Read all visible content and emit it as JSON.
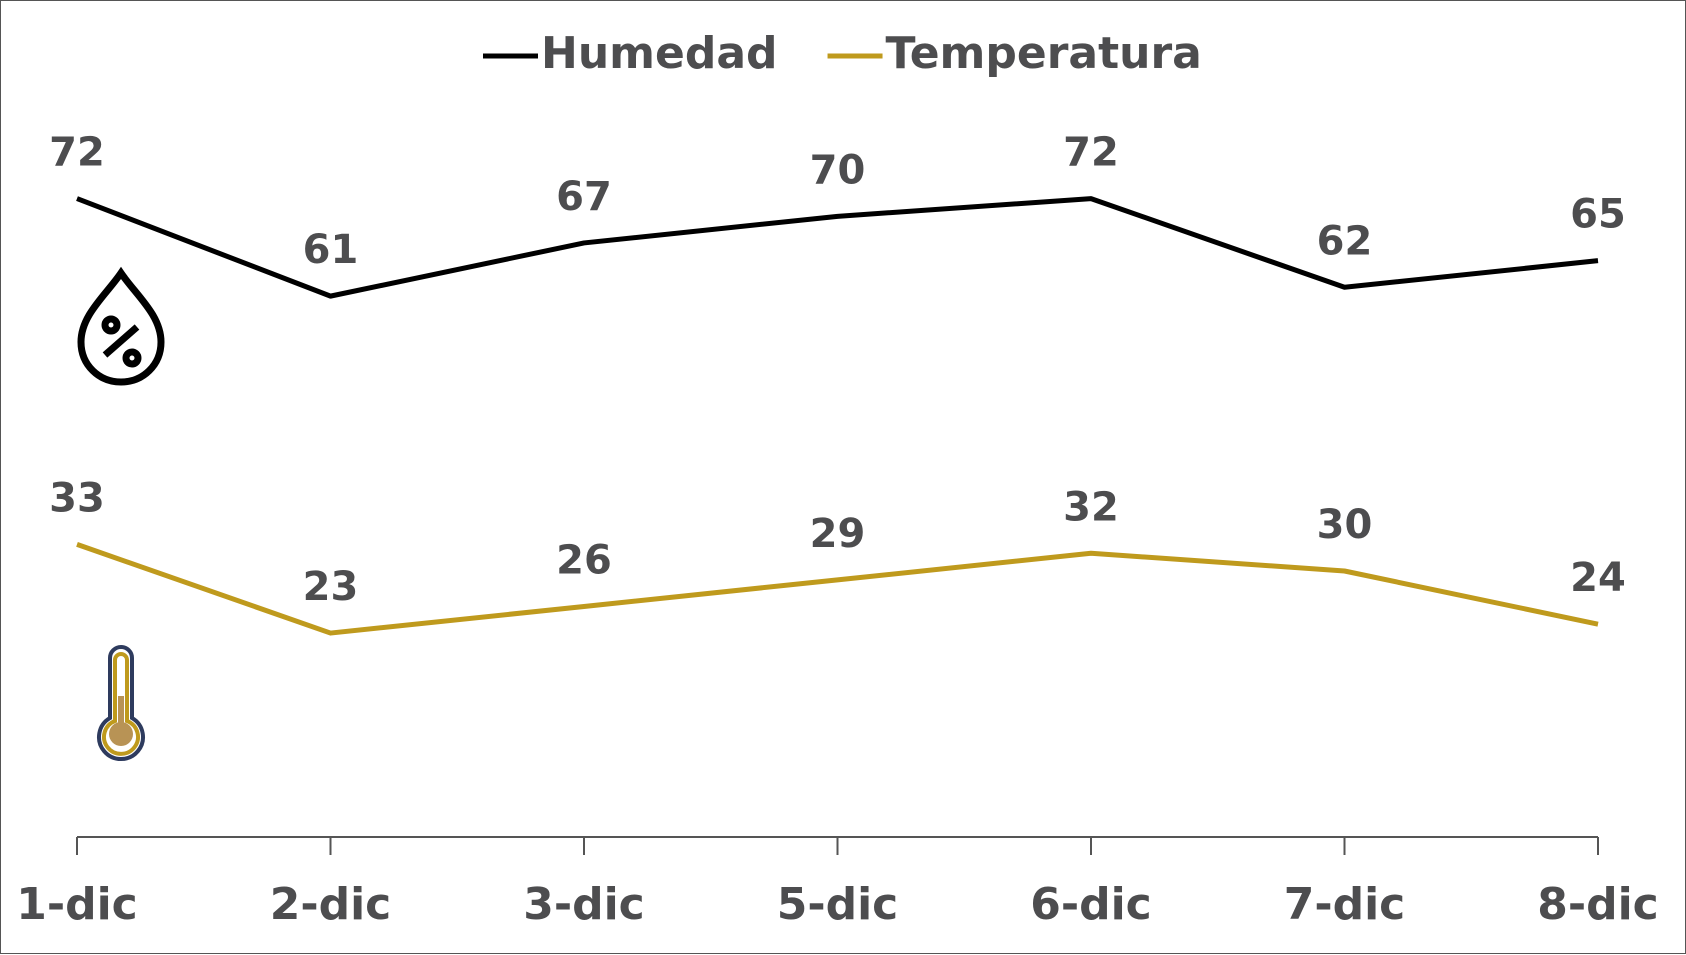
{
  "chart_data": {
    "type": "line",
    "categories": [
      "1-dic",
      "2-dic",
      "3-dic",
      "5-dic",
      "6-dic",
      "7-dic",
      "8-dic"
    ],
    "series": [
      {
        "name": "Humedad",
        "color": "#000000",
        "values": [
          72,
          61,
          67,
          70,
          72,
          62,
          65
        ]
      },
      {
        "name": "Temperatura",
        "color": "#bf9a1d",
        "values": [
          33,
          23,
          26,
          29,
          32,
          30,
          24
        ]
      }
    ],
    "ylim": [
      0,
      90
    ],
    "legend": "top"
  }
}
